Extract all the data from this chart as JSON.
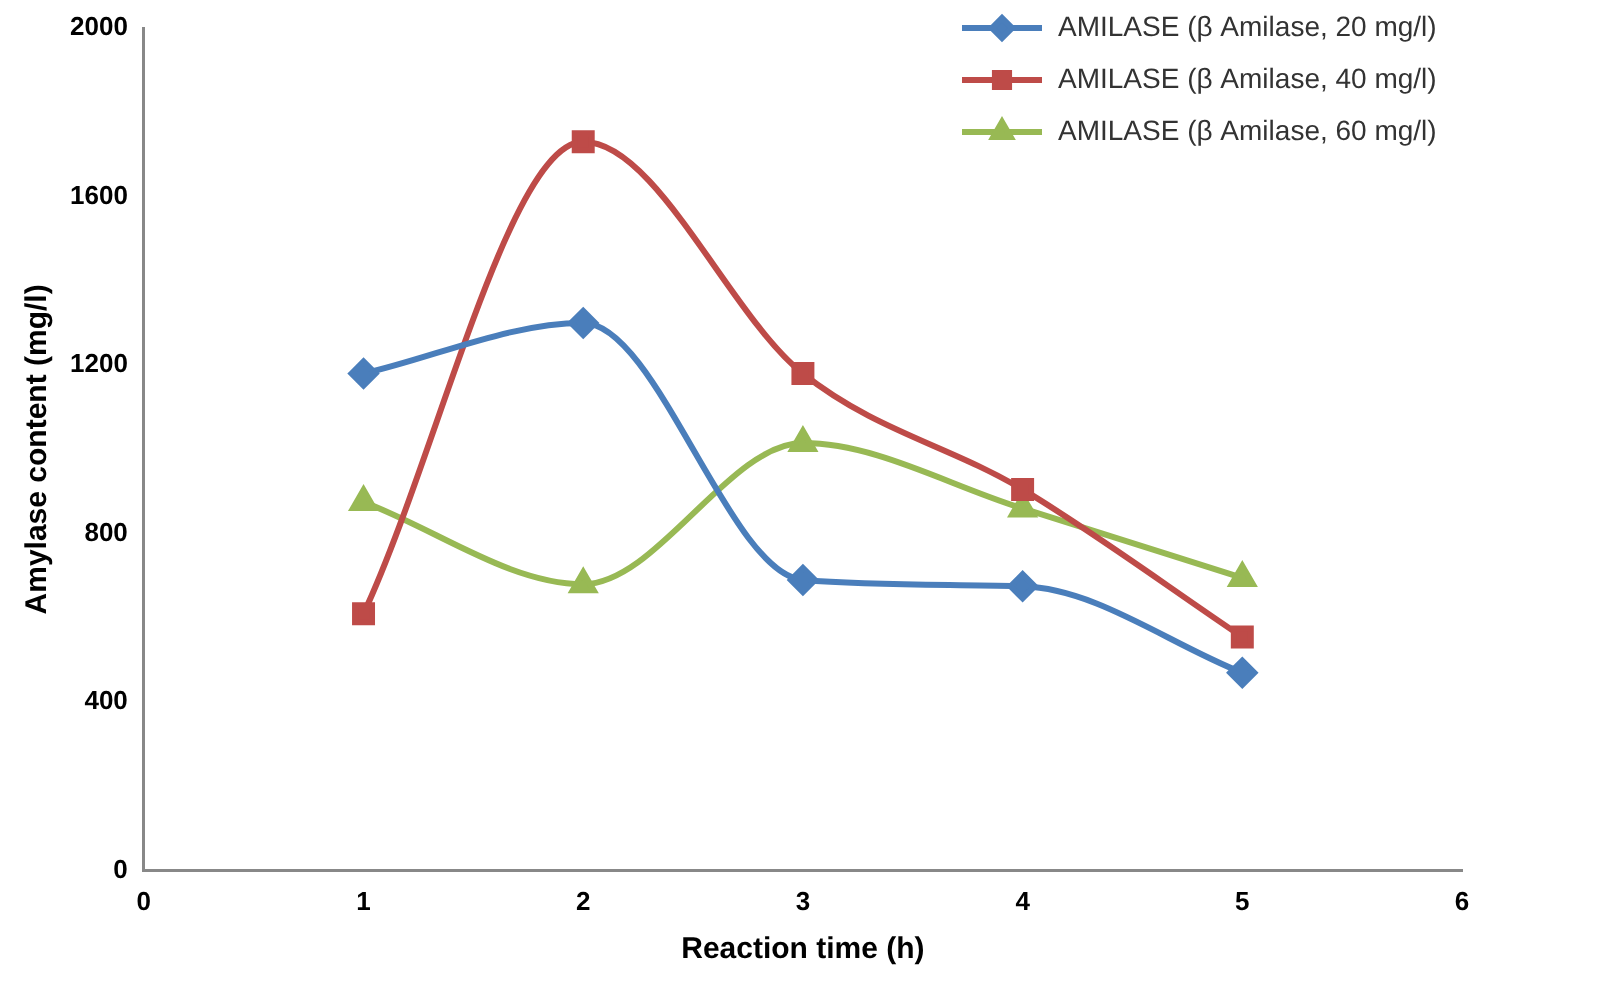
{
  "chart_data": {
    "type": "line",
    "xlabel": "Reaction time (h)",
    "ylabel": "Amylase content (mg/l)",
    "x": [
      1,
      2,
      3,
      4,
      5
    ],
    "series": [
      {
        "name": "AMILASE (β Amilase, 20 mg/l)",
        "color": "#4a7ebb",
        "marker": "diamond",
        "values": [
          1180,
          1300,
          690,
          675,
          470
        ]
      },
      {
        "name": "AMILASE (β Amilase, 40 mg/l)",
        "color": "#be4b48",
        "marker": "square",
        "values": [
          610,
          1730,
          1180,
          905,
          555
        ]
      },
      {
        "name": "AMILASE (β Amilase, 60 mg/l)",
        "color": "#98b954",
        "marker": "triangle",
        "values": [
          875,
          680,
          1015,
          860,
          695
        ]
      }
    ],
    "xlim": [
      0,
      6
    ],
    "xticks": [
      0,
      1,
      2,
      3,
      4,
      5,
      6
    ],
    "ylim": [
      0,
      2000
    ],
    "yticks": [
      0,
      400,
      800,
      1200,
      1600,
      2000
    ],
    "grid": false,
    "legend": "top right",
    "line_style": "solid"
  }
}
